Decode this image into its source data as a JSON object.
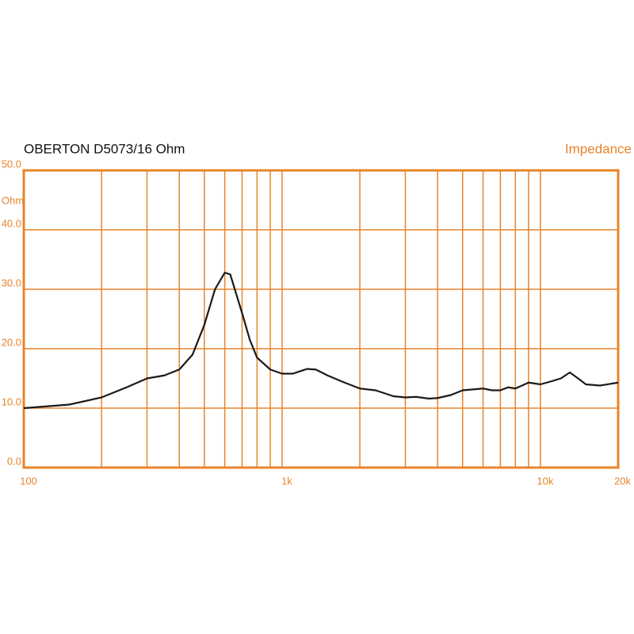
{
  "chart_data": {
    "type": "line",
    "title": "OBERTON D5073/16 Ohm",
    "legend_label": "Impedance",
    "y_unit": "Ohm",
    "x_log": true,
    "grid": true,
    "grid_color": "#e8842a",
    "x": [
      100,
      150,
      200,
      250,
      300,
      350,
      400,
      450,
      500,
      550,
      600,
      630,
      700,
      750,
      800,
      900,
      1000,
      1100,
      1250,
      1350,
      1500,
      1700,
      2000,
      2300,
      2700,
      3000,
      3300,
      3700,
      4000,
      4500,
      5000,
      6000,
      6500,
      7000,
      7500,
      8000,
      9000,
      10000,
      11000,
      12000,
      13000,
      14000,
      15000,
      17000,
      20000
    ],
    "series": [
      {
        "name": "Impedance",
        "color": "#1a1a1a",
        "values": [
          10.0,
          10.6,
          11.8,
          13.5,
          15.0,
          15.5,
          16.5,
          19.0,
          24.0,
          30.0,
          32.8,
          32.5,
          26.0,
          21.5,
          18.5,
          16.5,
          15.8,
          15.8,
          16.6,
          16.5,
          15.5,
          14.5,
          13.3,
          13.0,
          12.0,
          11.8,
          11.9,
          11.6,
          11.7,
          12.2,
          13.0,
          13.3,
          13.0,
          13.0,
          13.5,
          13.3,
          14.3,
          14.0,
          14.5,
          15.0,
          16.0,
          15.0,
          14.0,
          13.8,
          14.3
        ]
      }
    ],
    "xlim": [
      100,
      20000
    ],
    "xticks": [
      {
        "value": 100,
        "label": "100"
      },
      {
        "value": 1000,
        "label": "1k"
      },
      {
        "value": 10000,
        "label": "10k"
      },
      {
        "value": 20000,
        "label": "20k"
      }
    ],
    "x_minor_gridlines": [
      200,
      300,
      400,
      500,
      600,
      700,
      800,
      900,
      2000,
      3000,
      4000,
      5000,
      6000,
      7000,
      8000,
      9000
    ],
    "ylim": [
      0,
      50
    ],
    "yticks": [
      {
        "value": 0,
        "label": "0.0"
      },
      {
        "value": 10,
        "label": "10.0"
      },
      {
        "value": 20,
        "label": "20.0"
      },
      {
        "value": 30,
        "label": "30.0"
      },
      {
        "value": 40,
        "label": "40.0"
      },
      {
        "value": 50,
        "label": "50.0"
      }
    ]
  }
}
